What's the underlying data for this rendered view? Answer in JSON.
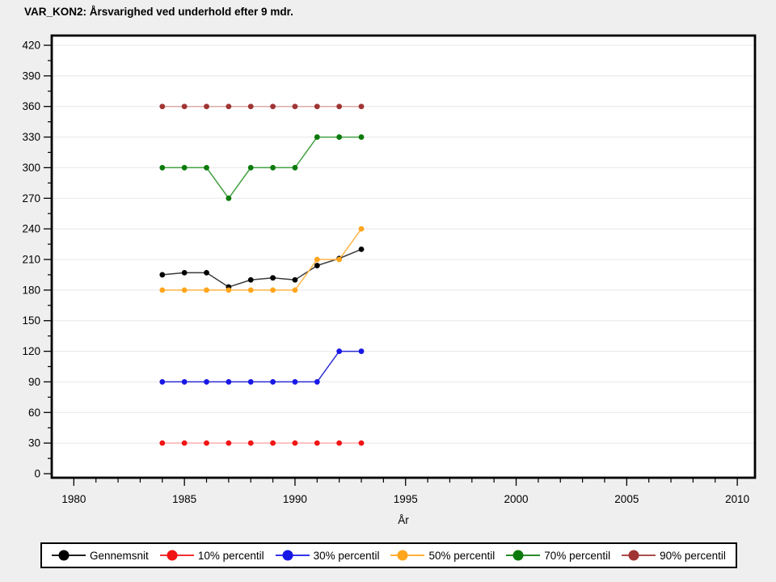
{
  "page": {
    "background_color": "#efefef",
    "plot_background_color": "#ffffff",
    "frame_color": "#000000",
    "gridline_color": "#e8e8e8"
  },
  "chart_data": {
    "type": "line",
    "title": "VAR_KON2: Årsvarighed ved underhold efter 9 mdr.",
    "xlabel": "År",
    "ylabel": "",
    "grid": "horizontal",
    "legend_position": "bottom",
    "xlim": [
      1979,
      2010.8
    ],
    "ylim": [
      0,
      420
    ],
    "y_tick_step": 30,
    "y_minor_tick_step": 15,
    "x_major_ticks": [
      1980,
      1985,
      1990,
      1995,
      2000,
      2005,
      2010
    ],
    "x_minor_tick_step": 1,
    "x": [
      1984,
      1985,
      1986,
      1987,
      1988,
      1989,
      1990,
      1991,
      1992,
      1993
    ],
    "series": [
      {
        "name": "Gennemsnit",
        "marker_color": "#000000",
        "line_color": "#3b3b3b",
        "values": [
          195,
          197,
          197,
          183,
          190,
          192,
          190,
          204,
          211,
          220
        ]
      },
      {
        "name": "10% percentil",
        "marker_color": "#f01414",
        "line_color": "#ffb0b0",
        "values": [
          30,
          30,
          30,
          30,
          30,
          30,
          30,
          30,
          30,
          30
        ]
      },
      {
        "name": "30% percentil",
        "marker_color": "#1717e6",
        "line_color": "#2b2bd4",
        "values": [
          90,
          90,
          90,
          90,
          90,
          90,
          90,
          90,
          120,
          120
        ]
      },
      {
        "name": "50% percentil",
        "marker_color": "#ffa51c",
        "line_color": "#ffb445",
        "values": [
          180,
          180,
          180,
          180,
          180,
          180,
          180,
          210,
          210,
          240
        ]
      },
      {
        "name": "70% percentil",
        "marker_color": "#0b7a0b",
        "line_color": "#43a143",
        "values": [
          300,
          300,
          300,
          270,
          300,
          300,
          300,
          330,
          330,
          330
        ]
      },
      {
        "name": "90% percentil",
        "marker_color": "#a03434",
        "line_color": "#d9abab",
        "values": [
          360,
          360,
          360,
          360,
          360,
          360,
          360,
          360,
          360,
          360
        ]
      }
    ]
  }
}
